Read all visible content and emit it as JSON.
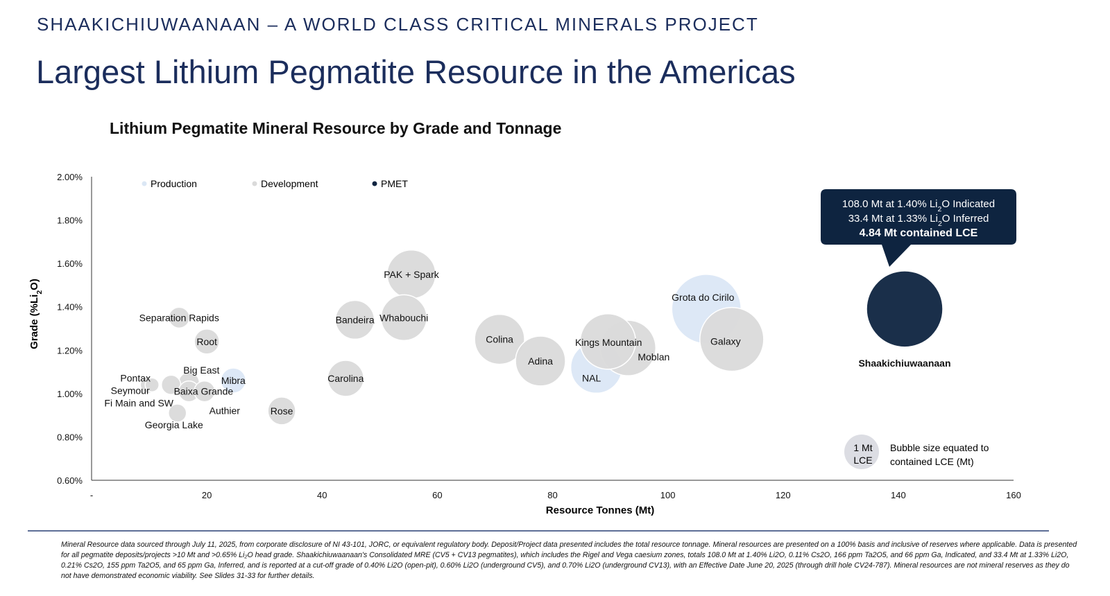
{
  "header": {
    "kicker": "SHAAKICHIUWAANAAN – A WORLD CLASS CRITICAL MINERALS PROJECT",
    "title": "Largest Lithium Pegmatite Resource in the Americas"
  },
  "colors": {
    "production": "#dbe7f5",
    "development": "#dadada",
    "pmet": "#0e2440",
    "title": "#1b2d5c"
  },
  "chart_data": {
    "type": "scatter",
    "subtype": "bubble",
    "title": "Lithium Pegmatite Mineral Resource by Grade and Tonnage",
    "xlabel": "Resource Tonnes (Mt)",
    "ylabel_parts": [
      "Grade (%Li",
      "2",
      "O)"
    ],
    "xlim": [
      0,
      160
    ],
    "ylim": [
      0.6,
      2.0
    ],
    "x_ticks": [
      "-",
      "20",
      "40",
      "60",
      "80",
      "100",
      "120",
      "140",
      "160"
    ],
    "y_ticks": [
      "0.60%",
      "0.80%",
      "1.00%",
      "1.20%",
      "1.40%",
      "1.60%",
      "1.80%",
      "2.00%"
    ],
    "grid": false,
    "legend": {
      "placement": "top-left",
      "entries": [
        "Production",
        "Development",
        "PMET"
      ]
    },
    "size_legend": {
      "marker": [
        "1 Mt",
        "LCE"
      ],
      "text": [
        "Bubble size equated to",
        "contained LCE (Mt)"
      ]
    },
    "points": [
      {
        "name": "Separation Rapids",
        "category": "Development",
        "x": 15.2,
        "y": 1.35,
        "lce": 0.36
      },
      {
        "name": "Root",
        "category": "Development",
        "x": 20.0,
        "y": 1.24,
        "lce": 0.52
      },
      {
        "name": "Big East",
        "category": "Development",
        "x": 16.9,
        "y": 1.05,
        "lce": 0.36
      },
      {
        "name": "Pontax",
        "category": "Development",
        "x": 9.9,
        "y": 1.04,
        "lce": 0.23
      },
      {
        "name": "Fi Main and SW",
        "category": "Development",
        "x": 10.5,
        "y": 1.04,
        "lce": 0.16
      },
      {
        "name": "Seymour",
        "category": "Development",
        "x": 13.8,
        "y": 1.04,
        "lce": 0.31
      },
      {
        "name": "Baixa Grande",
        "category": "Development",
        "x": 16.9,
        "y": 1.01,
        "lce": 0.36
      },
      {
        "name": "Authier",
        "category": "Development",
        "x": 19.6,
        "y": 1.01,
        "lce": 0.36
      },
      {
        "name": "Mibra",
        "category": "Production",
        "x": 24.6,
        "y": 1.06,
        "lce": 0.52
      },
      {
        "name": "Georgia Lake",
        "category": "Development",
        "x": 14.9,
        "y": 0.91,
        "lce": 0.27
      },
      {
        "name": "Rose",
        "category": "Development",
        "x": 33.0,
        "y": 0.92,
        "lce": 0.64
      },
      {
        "name": "Carolina",
        "category": "Development",
        "x": 44.1,
        "y": 1.07,
        "lce": 1.08
      },
      {
        "name": "Bandeira",
        "category": "Development",
        "x": 45.7,
        "y": 1.34,
        "lce": 1.25
      },
      {
        "name": "PAK + Spark",
        "category": "Development",
        "x": 55.5,
        "y": 1.55,
        "lce": 1.96
      },
      {
        "name": "Whabouchi",
        "category": "Development",
        "x": 54.2,
        "y": 1.35,
        "lce": 1.74
      },
      {
        "name": "Colina",
        "category": "Development",
        "x": 70.8,
        "y": 1.25,
        "lce": 2.07
      },
      {
        "name": "Adina",
        "category": "Development",
        "x": 77.9,
        "y": 1.15,
        "lce": 2.07
      },
      {
        "name": "NAL",
        "category": "Production",
        "x": 87.6,
        "y": 1.12,
        "lce": 2.19
      },
      {
        "name": "Moblan",
        "category": "Development",
        "x": 93.1,
        "y": 1.21,
        "lce": 2.56
      },
      {
        "name": "Kings Mountain",
        "category": "Development",
        "x": 89.6,
        "y": 1.24,
        "lce": 2.56
      },
      {
        "name": "Grota do Cirilo",
        "category": "Production",
        "x": 106.7,
        "y": 1.39,
        "lce": 4.0
      },
      {
        "name": "Galaxy",
        "category": "Development",
        "x": 111.1,
        "y": 1.25,
        "lce": 3.39
      },
      {
        "name": "Shaakichiuwaanaan",
        "category": "PMET",
        "x": 141.1,
        "y": 1.39,
        "lce": 4.84
      }
    ],
    "callout": {
      "line1": [
        "108.0 Mt at 1.40% Li",
        "2",
        "O Indicated"
      ],
      "line2": [
        "33.4 Mt at 1.33% Li",
        "2",
        "O Inferred"
      ],
      "line3": "4.84 Mt contained LCE"
    }
  },
  "footnote": "Mineral Resource data sourced through July 11, 2025, from corporate disclosure of NI 43-101, JORC, or equivalent regulatory body. Deposit/Project data presented includes the total resource tonnage. Mineral resources are presented on a 100% basis and inclusive of reserves where applicable. Data is presented for all pegmatite deposits/projects >10 Mt and >0.65% Li₂O head grade. Shaakichiuwaanaan's Consolidated MRE (CV5 + CV13 pegmatites), which includes the Rigel and Vega caesium zones, totals 108.0 Mt at 1.40% Li2O, 0.11% Cs2O, 166 ppm Ta2O5, and 66 ppm Ga, Indicated, and 33.4 Mt at 1.33% Li2O, 0.21% Cs2O, 155 ppm Ta2O5, and 65 ppm Ga, Inferred, and is reported at a cut-off grade of 0.40% Li2O (open-pit), 0.60% Li2O (underground CV5), and 0.70% Li2O (underground CV13), with an Effective Date June 20, 2025 (through drill hole CV24-787). Mineral resources are not mineral reserves as they do not have demonstrated economic viability. See Slides 31-33 for further details."
}
